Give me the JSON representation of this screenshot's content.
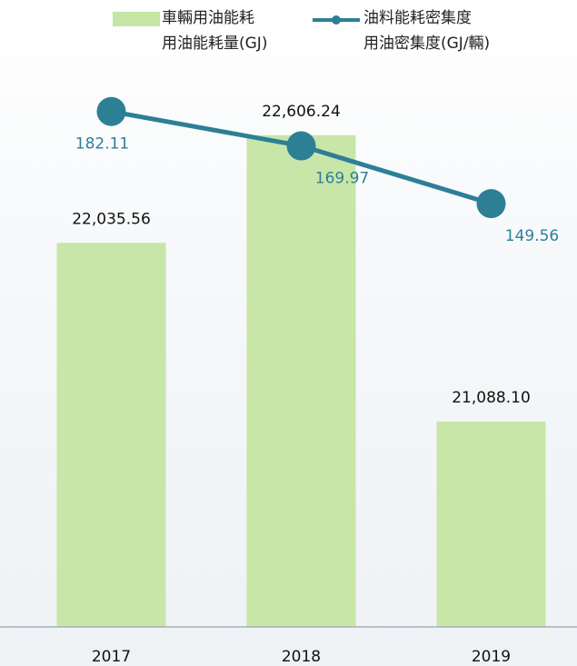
{
  "chart_data": {
    "type": "bar-line",
    "categories": [
      "2017",
      "2018",
      "2019"
    ],
    "series": [
      {
        "name": "車輛用油能耗\n用油能耗量(GJ)",
        "type": "bar",
        "color": "#c4e5a3",
        "values": [
          22035.56,
          22606.24,
          21088.1
        ],
        "value_labels": [
          "22,035.56",
          "22,606.24",
          "21,088.10"
        ]
      },
      {
        "name": "油料能耗密集度\n用油密集度(GJ/輛)",
        "type": "line",
        "axis": "y2",
        "color": "#2d7f96",
        "values": [
          182.11,
          169.97,
          149.56
        ]
      }
    ],
    "ylim": [
      20000,
      23000
    ],
    "y2lim": [
      0,
      200
    ]
  }
}
